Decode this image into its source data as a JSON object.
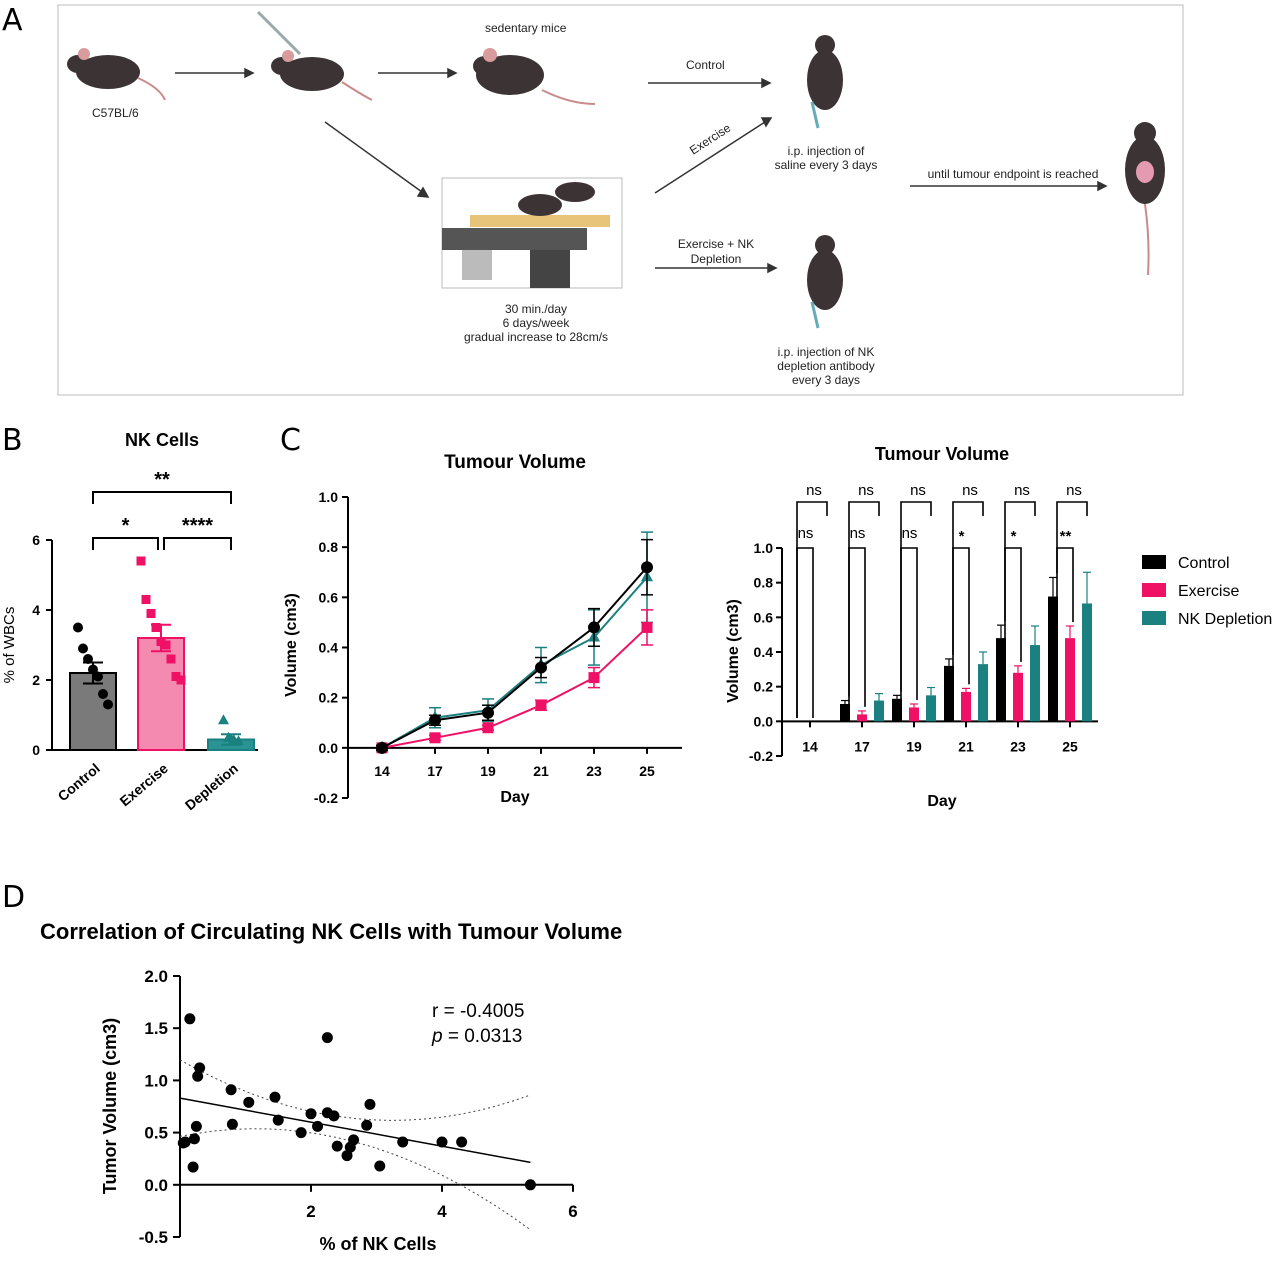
{
  "panel_labels": {
    "a": "A",
    "b": "B",
    "c": "C",
    "d": "D"
  },
  "schematic": {
    "strain_label": "C57BL/6",
    "sedentary_label": "sedentary mice",
    "arm_control": "Control",
    "arm_exercise": "Exercise",
    "arm_exnk_1": "Exercise + NK",
    "arm_exnk_2": "Depletion",
    "treadmill_1": "30 min./day",
    "treadmill_2": "6 days/week",
    "treadmill_3": "gradual increase to 28cm/s",
    "saline_1": "i.p. injection of",
    "saline_2": "saline every 3 days",
    "nk_inj_1": "i.p. injection of NK",
    "nk_inj_2": "depletion antibody",
    "nk_inj_3": "every 3 days",
    "endpoint": "until tumour endpoint is reached"
  },
  "colors": {
    "control": "#000000",
    "exercise": "#ee1166",
    "nk": "#1a8080",
    "control_bar": "#7a7a7a",
    "exercise_bar": "#f58ab0",
    "nk_bar": "#2a9494"
  },
  "legend": {
    "control": "Control",
    "exercise": "Exercise",
    "nk": "NK Depletion"
  },
  "chart_data": [
    {
      "id": "nk_cells_bar",
      "type": "bar",
      "title": "NK Cells",
      "ylabel": "% of WBCs",
      "xlabel": "",
      "categories": [
        "Control",
        "Exercise",
        "Depletion"
      ],
      "values": [
        2.2,
        3.2,
        0.3
      ],
      "sem": [
        0.3,
        0.38,
        0.15
      ],
      "points": [
        [
          3.5,
          2.9,
          2.6,
          2.3,
          2.1,
          1.6,
          1.3
        ],
        [
          5.4,
          4.3,
          3.9,
          3.5,
          3.1,
          3.0,
          2.6,
          2.1,
          2.0
        ],
        [
          0.85,
          0.35,
          0.3,
          0.25
        ]
      ],
      "ylim": [
        0,
        6
      ],
      "yticks": [
        "0",
        "2",
        "4",
        "6"
      ],
      "significance": [
        {
          "pair": "Control-Depletion",
          "label": "**"
        },
        {
          "pair": "Control-Exercise",
          "label": "*"
        },
        {
          "pair": "Exercise-Depletion",
          "label": "****"
        }
      ]
    },
    {
      "id": "tumour_volume_line",
      "type": "line",
      "title": "Tumour Volume",
      "xlabel": "Day",
      "ylabel": "Volume (cm3)",
      "categories": [
        "14",
        "17",
        "19",
        "21",
        "23",
        "25"
      ],
      "ylim": [
        -0.2,
        1.0
      ],
      "yticks": [
        "-0.2",
        "0.0",
        "0.2",
        "0.4",
        "0.6",
        "0.8",
        "1.0"
      ],
      "series": [
        {
          "values": [
            0.0,
            0.11,
            0.14,
            0.32,
            0.48,
            0.72
          ],
          "error": [
            0.01,
            0.02,
            0.03,
            0.04,
            0.075,
            0.11
          ]
        },
        {
          "values": [
            0.0,
            0.04,
            0.08,
            0.17,
            0.28,
            0.48
          ],
          "error": [
            0.01,
            0.01,
            0.01,
            0.02,
            0.04,
            0.07
          ]
        },
        {
          "values": [
            0.0,
            0.12,
            0.15,
            0.33,
            0.44,
            0.68
          ],
          "error": [
            0.01,
            0.04,
            0.045,
            0.07,
            0.11,
            0.18
          ]
        }
      ]
    },
    {
      "id": "tumour_volume_grouped_bar",
      "type": "bar",
      "title": "Tumour Volume",
      "xlabel": "Day",
      "ylabel": "Volume (cm3)",
      "categories": [
        "14",
        "17",
        "19",
        "21",
        "23",
        "25"
      ],
      "ylim": [
        -0.2,
        1.0
      ],
      "yticks": [
        "-0.2",
        "0.0",
        "0.2",
        "0.4",
        "0.6",
        "0.8",
        "1.0"
      ],
      "series": [
        {
          "name": "Control",
          "values": [
            0.0,
            0.1,
            0.13,
            0.32,
            0.48,
            0.72
          ],
          "error": [
            0.0,
            0.02,
            0.02,
            0.04,
            0.075,
            0.11
          ]
        },
        {
          "name": "Exercise",
          "values": [
            0.0,
            0.04,
            0.08,
            0.17,
            0.28,
            0.48
          ],
          "error": [
            0.0,
            0.02,
            0.02,
            0.02,
            0.04,
            0.07
          ]
        },
        {
          "name": "NK Depletion",
          "values": [
            0.0,
            0.12,
            0.15,
            0.33,
            0.44,
            0.68
          ],
          "error": [
            0.0,
            0.04,
            0.045,
            0.07,
            0.11,
            0.18
          ]
        }
      ],
      "significance_outer": [
        "ns",
        "ns",
        "ns",
        "ns",
        "ns",
        "ns"
      ],
      "significance_inner": [
        "ns",
        "ns",
        "ns",
        "*",
        "*",
        "**"
      ]
    },
    {
      "id": "nk_vs_tumour_scatter",
      "type": "scatter",
      "title": "Correlation of Circulating NK Cells with Tumour Volume",
      "xlabel": "% of NK Cells",
      "ylabel": "Tumor Volume (cm3)",
      "xlim": [
        0,
        6
      ],
      "ylim": [
        -0.5,
        2.0
      ],
      "xticks": [
        "2",
        "4",
        "6"
      ],
      "yticks": [
        "-0.5",
        "0.0",
        "0.5",
        "1.0",
        "1.5",
        "2.0"
      ],
      "points": [
        [
          0.08,
          0.41
        ],
        [
          0.15,
          1.59
        ],
        [
          0.22,
          0.44
        ],
        [
          0.27,
          1.04
        ],
        [
          0.2,
          0.17
        ],
        [
          0.3,
          1.12
        ],
        [
          0.25,
          0.56
        ],
        [
          0.05,
          0.4
        ],
        [
          0.78,
          0.91
        ],
        [
          0.8,
          0.58
        ],
        [
          1.05,
          0.79
        ],
        [
          1.45,
          0.84
        ],
        [
          1.5,
          0.62
        ],
        [
          1.85,
          0.5
        ],
        [
          2.0,
          0.68
        ],
        [
          2.1,
          0.56
        ],
        [
          2.25,
          1.41
        ],
        [
          2.25,
          0.69
        ],
        [
          2.35,
          0.66
        ],
        [
          2.4,
          0.37
        ],
        [
          2.55,
          0.28
        ],
        [
          2.6,
          0.36
        ],
        [
          2.65,
          0.43
        ],
        [
          2.85,
          0.57
        ],
        [
          2.9,
          0.77
        ],
        [
          3.05,
          0.18
        ],
        [
          3.4,
          0.41
        ],
        [
          4.0,
          0.41
        ],
        [
          4.3,
          0.41
        ],
        [
          5.35,
          0.0
        ]
      ],
      "fit": {
        "slope": -0.115,
        "intercept": 0.83
      },
      "annotation_r": "r = -0.4005",
      "annotation_p_italic": "p",
      "annotation_p_value": " = 0.0313"
    }
  ]
}
